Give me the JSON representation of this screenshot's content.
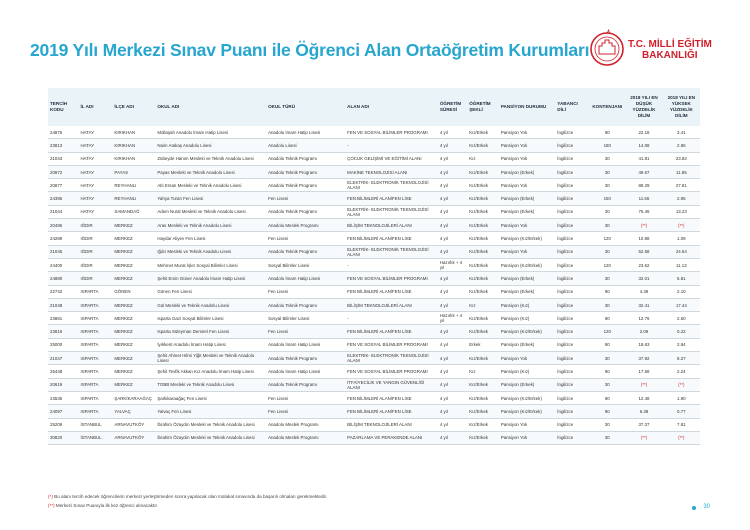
{
  "header": {
    "title": "2019 Yılı Merkezi Sınav Puanı ile Öğrenci Alan Ortaöğretim Kurumları",
    "logo_line1": "T.C. MİLLİ EĞİTİM",
    "logo_line2": "BAKANLIĞI"
  },
  "table": {
    "columns": [
      "TERCİH KODU",
      "İL ADI",
      "İLÇE ADI",
      "OKUL ADI",
      "OKUL TÜRÜ",
      "ALAN ADI",
      "ÖĞRETİM SÜRESİ",
      "ÖĞRETİM ŞEKLİ",
      "PANSİYON DURUMU",
      "YABANCI DİLİ",
      "KONTENJANI",
      "2018 YILI EN DÜŞÜK YÜZDELİK DİLİM",
      "2018 YILI EN YÜKSEK YÜZDELİK DİLİM"
    ],
    "rows": [
      [
        "24875",
        "HATAY",
        "KIRIKHAN",
        "Mollaşah Anadolu İmam Hatip Lisesi",
        "Anadolu İmam Hatip Lisesi",
        "FEN VE SOSYAL BİLİMLER PROGRAMI",
        "4 yıl",
        "Kız/Erkek",
        "Pansiyon Yok",
        "İngilizce",
        "90",
        "22.18",
        "3.41"
      ],
      [
        "23813",
        "HATAY",
        "KIRIKHAN",
        "Naim Atakaş Anadolu Lisesi",
        "Anadolu Lisesi",
        "-",
        "4 yıl",
        "Kız/Erkek",
        "Pansiyon Yok",
        "İngilizce",
        "180",
        "14.08",
        "2.86"
      ],
      [
        "21043",
        "HATAY",
        "KIRIKHAN",
        "Zübeyde Hanım Mesleki ve Teknik Anadolu Lisesi",
        "Anadolu Teknik Programı",
        "ÇOCUK GELİŞİMİ VE EĞİTİMİ ALANI",
        "4 yıl",
        "Kız",
        "Pansiyon Yok",
        "İngilizce",
        "30",
        "41.81",
        "23.82"
      ],
      [
        "20872",
        "HATAY",
        "PAYAS",
        "Payas Mesleki ve Teknik Anadolu Lisesi",
        "Anadolu Teknik Programı",
        "MAKİNE TEKNOLOJİSİ ALANI",
        "4 yıl",
        "Kız/Erkek",
        "Pansiyon (Erkek)",
        "İngilizce",
        "30",
        "49.67",
        "11.95"
      ],
      [
        "20877",
        "HATAY",
        "REYHANLI",
        "Atlı Ersan Mesleki ve Teknik Anadolu Lisesi",
        "Anadolu Teknik Programı",
        "ELEKTRİK- ELEKTRONİK TEKNOLOJİSİ ALANI",
        "4 yıl",
        "Kız/Erkek",
        "Pansiyon Yok",
        "İngilizce",
        "30",
        "88.29",
        "27.81"
      ],
      [
        "24395",
        "HATAY",
        "REYHANLI",
        "Yahya Turan Fen Lisesi",
        "Fen Lisesi",
        "FEN BİLİMLERİ ALAN/FEN LİSE",
        "4 yıl",
        "Kız/Erkek",
        "Pansiyon (Erkek)",
        "İngilizce",
        "150",
        "11.66",
        "2.95"
      ],
      [
        "21044",
        "HATAY",
        "SAMANDAĞ",
        "Adem Nural Mesleki ve Teknik Anadolu Lisesi",
        "Anadolu Teknik Programı",
        "ELEKTRİK- ELEKTRONİK TEKNOLOJİSİ ALANI",
        "4 yıl",
        "Kız/Erkek",
        "Pansiyon (Erkek)",
        "İngilizce",
        "30",
        "75.46",
        "13.23"
      ],
      [
        "20486",
        "IĞDIR",
        "MERKEZ",
        "Aras Mesleki ve Teknik Anadolu Lisesi",
        "Anadolu Meslek Programı",
        "BİLİŞİM TEKNOLOJİLERİ ALANI",
        "4 yıl",
        "Kız/Erkek",
        "Pansiyon Yok",
        "İngilizce",
        "30",
        "(**)",
        "(**)"
      ],
      [
        "24289",
        "IĞDIR",
        "MERKEZ",
        "Haydar Aliyev Fen Lisesi",
        "Fen Lisesi",
        "FEN BİLİMLERİ ALAN/FEN LİSE",
        "4 yıl",
        "Kız/Erkek",
        "Pansiyon (Kız/Erkek)",
        "İngilizce",
        "120",
        "10.88",
        "1.09"
      ],
      [
        "21045",
        "IĞDIR",
        "MERKEZ",
        "Iğdır Mesleki ve Teknik Anadolu Lisesi",
        "Anadolu Teknik Programı",
        "ELEKTRİK- ELEKTRONİK TEKNOLOJİSİ ALANI",
        "4 yıl",
        "Kız/Erkek",
        "Pansiyon Yok",
        "İngilizce",
        "30",
        "52.58",
        "24.64"
      ],
      [
        "24400",
        "IĞDIR",
        "MERKEZ",
        "Mehmet Murat İşler Sosyal Bilimler Lisesi",
        "Sosyal Bilimler Lisesi",
        "-",
        "Hazırlık + 4 yıl",
        "Kız/Erkek",
        "Pansiyon (Kız/Erkek)",
        "İngilizce",
        "120",
        "23.62",
        "11.13"
      ],
      [
        "24880",
        "IĞDIR",
        "MERKEZ",
        "Şehit Emin Güner Anadolu İmam Hatip Lisesi",
        "Anadolu İmam Hatip Lisesi",
        "FEN VE SOSYAL BİLİMLER PROGRAMI",
        "4 yıl",
        "Kız/Erkek",
        "Pansiyon (Erkek)",
        "İngilizce",
        "30",
        "32.01",
        "5.81"
      ],
      [
        "22742",
        "ISPARTA",
        "GÖNEN",
        "Gönen Fen Lisesi",
        "Fen Lisesi",
        "FEN BİLİMLERİ ALAN/FEN LİSE",
        "4 yıl",
        "Kız/Erkek",
        "Pansiyon (Erkek)",
        "İngilizce",
        "90",
        "4.38",
        "2.10"
      ],
      [
        "21048",
        "ISPARTA",
        "MERKEZ",
        "Gül Mesleki ve Teknik Anadolu Lisesi",
        "Anadolu Teknik Programı",
        "BİLİŞİM TEKNOLOJİLERİ ALANI",
        "4 yıl",
        "Kız",
        "Pansiyon (Kız)",
        "İngilizce",
        "30",
        "32.41",
        "17.44"
      ],
      [
        "23881",
        "ISPARTA",
        "MERKEZ",
        "Isparta Gazi Sosyal Bilimler Lisesi",
        "Sosyal Bilimler Lisesi",
        "-",
        "Hazırlık + 4 yıl",
        "Kız/Erkek",
        "Pansiyon (Kız)",
        "İngilizce",
        "90",
        "12.76",
        "2.50"
      ],
      [
        "23816",
        "ISPARTA",
        "MERKEZ",
        "Isparta Süleyman Demirel Fen Lisesi",
        "Fen Lisesi",
        "FEN BİLİMLERİ ALAN/FEN LİSE",
        "4 yıl",
        "Kız/Erkek",
        "Pansiyon (Kız/Erkek)",
        "İngilizce",
        "120",
        "2.09",
        "0.22"
      ],
      [
        "25000",
        "ISPARTA",
        "MERKEZ",
        "İyıkkent Anadolu İmam Hatip Lisesi",
        "Anadolu İmam Hatip Lisesi",
        "FEN VE SOSYAL BİLİMLER PROGRAMI",
        "4 yıl",
        "Erkek",
        "Pansiyon (Erkek)",
        "İngilizce",
        "90",
        "18.63",
        "2.94"
      ],
      [
        "21047",
        "ISPARTA",
        "MERKEZ",
        "Şehit Ahmet Hilmi Yiğit Mesleki ve Teknik Anadolu Lisesi",
        "Anadolu Teknik Programı",
        "ELEKTRİK- ELEKTRONİK TEKNOLOJİSİ ALANI",
        "4 yıl",
        "Kız/Erkek",
        "Pansiyon Yok",
        "İngilizce",
        "30",
        "37.92",
        "8.27"
      ],
      [
        "26448",
        "ISPARTA",
        "MERKEZ",
        "Şehit Tevfik Akkan Kız Anadolu İmam Hatip Lisesi",
        "Anadolu İmam Hatip Lisesi",
        "FEN VE SOSYAL BİLİMLER PROGRAMI",
        "4 yıl",
        "Kız",
        "Pansiyon (Kız)",
        "İngilizce",
        "90",
        "17.68",
        "2.24"
      ],
      [
        "20619",
        "ISPARTA",
        "MERKEZ",
        "TOBB Mesleki ve Teknik Anadolu Lisesi",
        "Anadolu Teknik Programı",
        "İTFAİYECİLİK VE YANGIN GÜVENLİĞİ ALANI",
        "4 yıl",
        "Kız/Erkek",
        "Pansiyon (Erkek)",
        "İngilizce",
        "30",
        "(**)",
        "(**)"
      ],
      [
        "23536",
        "ISPARTA",
        "ŞARKİKARAAĞAÇ",
        "Şarkikaraağaç Fen Lisesi",
        "Fen Lisesi",
        "FEN BİLİMLERİ ALAN/FEN LİSE",
        "4 yıl",
        "Kız/Erkek",
        "Pansiyon (Kız/Erkek)",
        "İngilizce",
        "90",
        "12.48",
        "1.90"
      ],
      [
        "24097",
        "ISPARTA",
        "YALVAÇ",
        "Yalvaç Fen Lisesi",
        "Fen Lisesi",
        "FEN BİLİMLERİ ALAN/FEN LİSE",
        "4 yıl",
        "Kız/Erkek",
        "Pansiyon (Kız/Erkek)",
        "İngilizce",
        "90",
        "6.38",
        "0.77"
      ],
      [
        "25209",
        "İSTANBUL",
        "ARNAVUTKÖY",
        "İbrahim Özaydın Mesleki ve Teknik Anadolu Lisesi",
        "Anadolu Meslek Programı",
        "BİLİŞİM TEKNOLOJİLERİ ALANI",
        "4 yıl",
        "Kız/Erkek",
        "Pansiyon Yok",
        "İngilizce",
        "30",
        "37.37",
        "7.81"
      ],
      [
        "30820",
        "İSTANBUL",
        "ARNAVUTKÖY",
        "İbrahim Özaydın Mesleki ve Teknik Anadolu Lisesi",
        "Anadolu Meslek Programı",
        "PAZARLAMA VE PERAKENDE ALANI",
        "4 yıl",
        "Kız/Erkek",
        "Pansiyon Yok",
        "İngilizce",
        "30",
        "(**)",
        "(**)"
      ]
    ]
  },
  "notes": {
    "n1_mark": "(*)",
    "n1_text": " Bu alanı tercih edecek öğrencilerin merkezi yerleştirmeden sonra yapılacak olan mülakat sınavında da başarılı olmaları gerekmektedir.",
    "n2_mark": "(**)",
    "n2_text": " Merkezi Sınav Puanıyla ilk kez öğrenci alınacaktır."
  },
  "page_number": "30",
  "colors": {
    "title": "#27a6cf",
    "accent_red": "#d0202a",
    "header_bg": "#eaf3f8"
  }
}
